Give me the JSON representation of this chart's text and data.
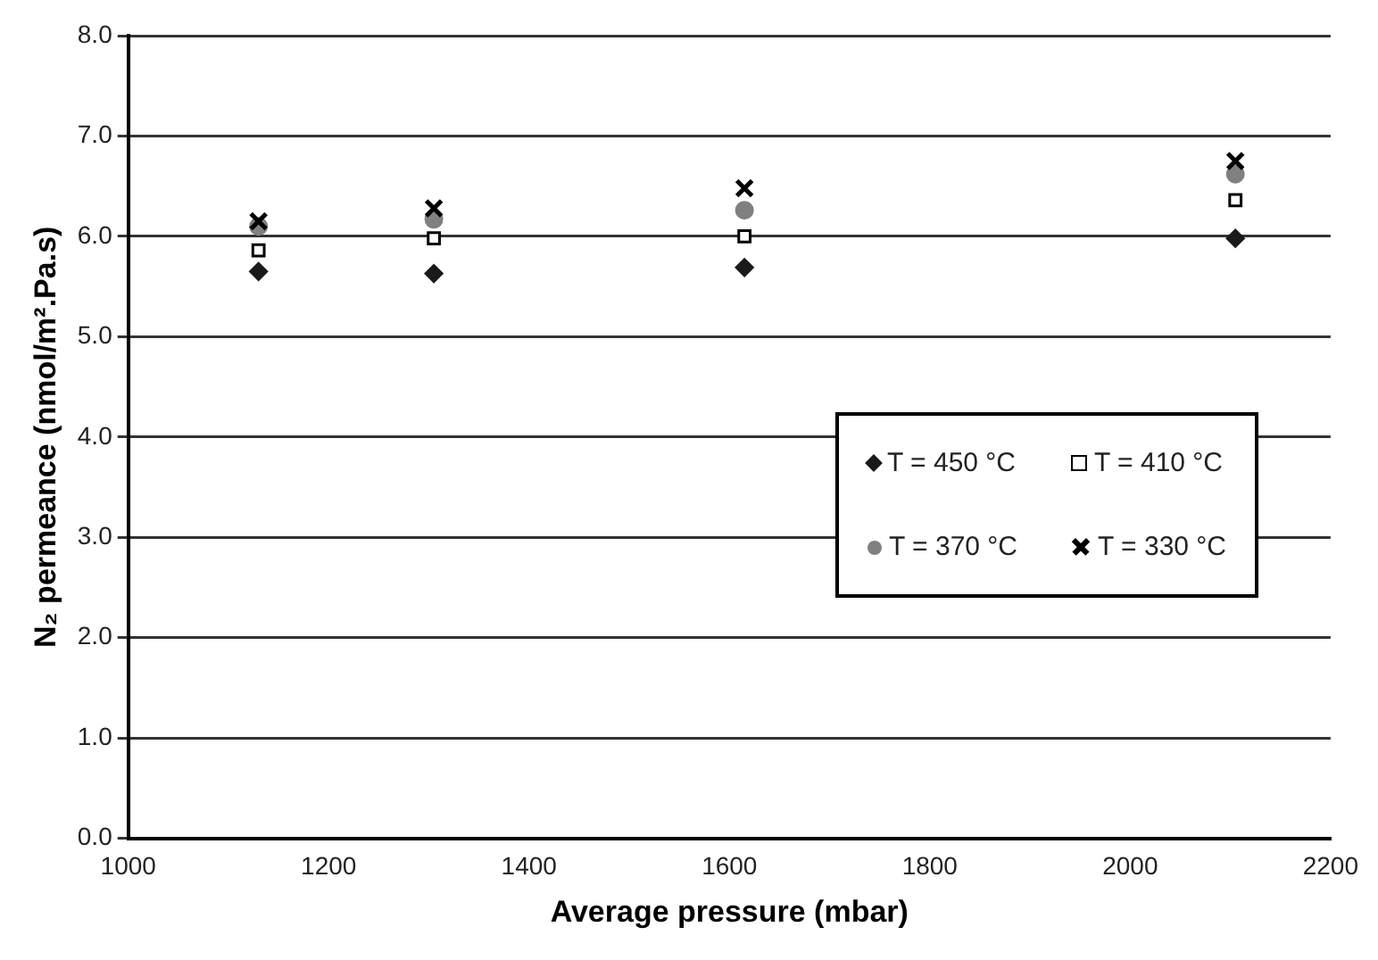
{
  "chart_data": {
    "type": "scatter",
    "xlabel": "Average pressure (mbar)",
    "ylabel": "N₂ permeance (nmol/m².Pa.s)",
    "xlim": [
      1000,
      2200
    ],
    "xticks": [
      1000,
      1200,
      1400,
      1600,
      1800,
      2000,
      2200
    ],
    "ylim": [
      0,
      8
    ],
    "yticks": [
      {
        "value": 0,
        "label": "0.0"
      },
      {
        "value": 1,
        "label": "1.0"
      },
      {
        "value": 2,
        "label": "2.0"
      },
      {
        "value": 3,
        "label": "3.0"
      },
      {
        "value": 4,
        "label": "4.0"
      },
      {
        "value": 5,
        "label": "5.0"
      },
      {
        "value": 6,
        "label": "6.0"
      },
      {
        "value": 7,
        "label": "7.0"
      },
      {
        "value": 8,
        "label": "8.0"
      }
    ],
    "grid": "y",
    "legend": "right",
    "series": [
      {
        "name": "T = 450 °C",
        "color": "#1a1a1a",
        "marker": "diamond",
        "x": [
          1130,
          1305,
          1615,
          2105
        ],
        "values": [
          5.65,
          5.63,
          5.69,
          5.98
        ]
      },
      {
        "name": "T = 410 °C",
        "color": "#000000",
        "marker": "square",
        "x": [
          1130,
          1305,
          1615,
          2105
        ],
        "values": [
          5.86,
          5.98,
          6.0,
          6.36
        ]
      },
      {
        "name": "T = 370 °C",
        "color": "#808080",
        "marker": "circle",
        "x": [
          1130,
          1305,
          1615,
          2105
        ],
        "values": [
          6.1,
          6.17,
          6.26,
          6.62
        ]
      },
      {
        "name": "T = 330 °C",
        "color": "#000000",
        "marker": "cross",
        "x": [
          1130,
          1305,
          1615,
          2105
        ],
        "values": [
          6.15,
          6.28,
          6.48,
          6.75
        ]
      }
    ]
  }
}
